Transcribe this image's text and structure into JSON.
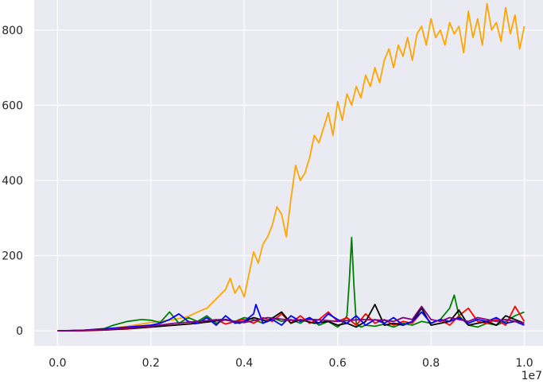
{
  "chart_data": {
    "type": "line",
    "title": "",
    "xlabel": "",
    "ylabel": "",
    "x_offset_label": "1e7",
    "xlim": [
      -0.05,
      1.04
    ],
    "ylim": [
      -40,
      880
    ],
    "x_ticks": [
      0.0,
      0.2,
      0.4,
      0.6,
      0.8,
      1.0
    ],
    "x_tick_labels": [
      "0.0",
      "0.2",
      "0.4",
      "0.6",
      "0.8",
      "1.0"
    ],
    "y_ticks": [
      0,
      200,
      400,
      600,
      800
    ],
    "y_tick_labels": [
      "0",
      "200",
      "400",
      "600",
      "800"
    ],
    "grid": true,
    "background": "#eaeaf2",
    "series": [
      {
        "color": "#ffa500",
        "x": [
          0.0,
          0.05,
          0.1,
          0.15,
          0.2,
          0.25,
          0.28,
          0.3,
          0.32,
          0.34,
          0.36,
          0.37,
          0.38,
          0.39,
          0.4,
          0.41,
          0.42,
          0.43,
          0.44,
          0.45,
          0.46,
          0.47,
          0.48,
          0.49,
          0.5,
          0.51,
          0.52,
          0.53,
          0.54,
          0.55,
          0.56,
          0.57,
          0.58,
          0.59,
          0.6,
          0.61,
          0.62,
          0.63,
          0.64,
          0.65,
          0.66,
          0.67,
          0.68,
          0.69,
          0.7,
          0.71,
          0.72,
          0.73,
          0.74,
          0.75,
          0.76,
          0.77,
          0.78,
          0.79,
          0.8,
          0.81,
          0.82,
          0.83,
          0.84,
          0.85,
          0.86,
          0.87,
          0.88,
          0.89,
          0.9,
          0.91,
          0.92,
          0.93,
          0.94,
          0.95,
          0.96,
          0.97,
          0.98,
          0.99,
          1.0
        ],
        "y": [
          0,
          1,
          4,
          12,
          22,
          30,
          38,
          50,
          60,
          85,
          110,
          140,
          100,
          120,
          90,
          150,
          210,
          180,
          230,
          250,
          280,
          330,
          310,
          250,
          350,
          440,
          400,
          420,
          460,
          520,
          500,
          540,
          580,
          520,
          610,
          560,
          630,
          600,
          650,
          620,
          680,
          650,
          700,
          660,
          720,
          750,
          700,
          760,
          730,
          780,
          720,
          790,
          810,
          760,
          830,
          780,
          800,
          760,
          820,
          790,
          810,
          740,
          850,
          780,
          830,
          760,
          870,
          800,
          820,
          770,
          860,
          790,
          840,
          750,
          810
        ]
      },
      {
        "color": "#008000",
        "x": [
          0.0,
          0.05,
          0.1,
          0.12,
          0.15,
          0.18,
          0.2,
          0.22,
          0.24,
          0.26,
          0.28,
          0.3,
          0.32,
          0.34,
          0.36,
          0.38,
          0.4,
          0.42,
          0.44,
          0.46,
          0.48,
          0.5,
          0.52,
          0.54,
          0.56,
          0.58,
          0.6,
          0.61,
          0.62,
          0.625,
          0.63,
          0.635,
          0.64,
          0.65,
          0.66,
          0.68,
          0.7,
          0.72,
          0.74,
          0.76,
          0.78,
          0.8,
          0.82,
          0.84,
          0.85,
          0.86,
          0.88,
          0.9,
          0.92,
          0.94,
          0.96,
          0.98,
          1.0
        ],
        "y": [
          0,
          1,
          6,
          15,
          25,
          30,
          28,
          22,
          50,
          20,
          35,
          25,
          40,
          20,
          30,
          25,
          35,
          30,
          20,
          35,
          25,
          30,
          20,
          35,
          15,
          25,
          10,
          20,
          40,
          130,
          248,
          120,
          20,
          10,
          15,
          12,
          18,
          10,
          20,
          15,
          25,
          20,
          30,
          60,
          95,
          40,
          15,
          10,
          20,
          15,
          25,
          40,
          50
        ]
      },
      {
        "color": "#ff0000",
        "x": [
          0.0,
          0.05,
          0.1,
          0.15,
          0.2,
          0.25,
          0.3,
          0.32,
          0.34,
          0.36,
          0.38,
          0.4,
          0.42,
          0.44,
          0.46,
          0.48,
          0.5,
          0.52,
          0.54,
          0.56,
          0.58,
          0.6,
          0.62,
          0.64,
          0.66,
          0.68,
          0.7,
          0.72,
          0.74,
          0.76,
          0.78,
          0.8,
          0.82,
          0.84,
          0.86,
          0.88,
          0.9,
          0.92,
          0.94,
          0.96,
          0.98,
          1.0
        ],
        "y": [
          0,
          0,
          2,
          5,
          10,
          15,
          20,
          25,
          30,
          18,
          25,
          30,
          20,
          35,
          25,
          45,
          20,
          40,
          20,
          30,
          50,
          25,
          35,
          15,
          45,
          20,
          30,
          15,
          25,
          20,
          50,
          20,
          30,
          15,
          40,
          60,
          25,
          20,
          30,
          15,
          65,
          25
        ]
      },
      {
        "color": "#000000",
        "x": [
          0.0,
          0.1,
          0.2,
          0.3,
          0.33,
          0.36,
          0.39,
          0.42,
          0.45,
          0.48,
          0.5,
          0.52,
          0.55,
          0.58,
          0.6,
          0.62,
          0.64,
          0.66,
          0.68,
          0.7,
          0.72,
          0.74,
          0.76,
          0.78,
          0.8,
          0.82,
          0.84,
          0.86,
          0.88,
          0.9,
          0.92,
          0.94,
          0.96,
          0.98,
          1.0
        ],
        "y": [
          0,
          2,
          10,
          20,
          25,
          30,
          20,
          35,
          25,
          50,
          20,
          30,
          20,
          25,
          15,
          20,
          10,
          25,
          70,
          15,
          20,
          15,
          25,
          60,
          15,
          20,
          25,
          55,
          15,
          20,
          25,
          15,
          40,
          30,
          20
        ]
      },
      {
        "color": "#0000ff",
        "x": [
          0.0,
          0.05,
          0.1,
          0.15,
          0.2,
          0.22,
          0.24,
          0.26,
          0.28,
          0.3,
          0.32,
          0.34,
          0.36,
          0.38,
          0.4,
          0.42,
          0.425,
          0.44,
          0.46,
          0.48,
          0.5,
          0.52,
          0.54,
          0.56,
          0.58,
          0.6,
          0.62,
          0.64,
          0.66,
          0.68,
          0.7,
          0.72,
          0.74,
          0.76,
          0.78,
          0.8,
          0.82,
          0.84,
          0.86,
          0.88,
          0.9,
          0.92,
          0.94,
          0.96,
          0.98,
          1.0
        ],
        "y": [
          0,
          1,
          5,
          10,
          15,
          20,
          30,
          45,
          25,
          20,
          35,
          15,
          40,
          20,
          25,
          45,
          70,
          20,
          30,
          15,
          40,
          25,
          35,
          20,
          45,
          30,
          20,
          40,
          15,
          30,
          20,
          35,
          15,
          25,
          50,
          20,
          30,
          25,
          35,
          20,
          30,
          25,
          35,
          20,
          25,
          15
        ]
      },
      {
        "color": "#800080",
        "x": [
          0.0,
          0.1,
          0.2,
          0.25,
          0.3,
          0.35,
          0.4,
          0.45,
          0.5,
          0.55,
          0.6,
          0.65,
          0.7,
          0.72,
          0.74,
          0.76,
          0.78,
          0.8,
          0.82,
          0.84,
          0.86,
          0.88,
          0.9,
          0.92,
          0.94,
          0.96,
          0.98,
          1.0
        ],
        "y": [
          0,
          3,
          12,
          20,
          25,
          30,
          22,
          35,
          28,
          30,
          25,
          30,
          28,
          25,
          35,
          30,
          65,
          30,
          25,
          35,
          30,
          25,
          35,
          30,
          25,
          30,
          25,
          20
        ]
      }
    ]
  }
}
